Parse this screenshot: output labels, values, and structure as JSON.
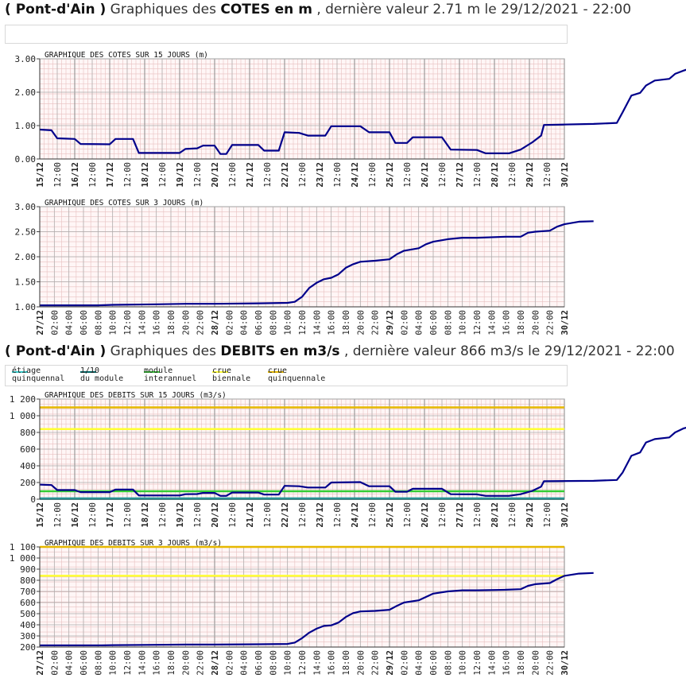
{
  "header_cotes": {
    "place": "( Pont-d'Ain )",
    "pre": "Graphiques des",
    "bold": "COTES en m",
    "post": ", dernière valeur 2.71 m le 29/12/2021 - 22:00"
  },
  "header_debits": {
    "place": "( Pont-d'Ain )",
    "pre": "Graphiques des",
    "bold": "DEBITS en m3/s",
    "post": ", dernière valeur 866 m3/s le 29/12/2021 - 22:00"
  },
  "legend": [
    {
      "label": "étiage\nquinquennal",
      "color": "#33cccc"
    },
    {
      "label": "1/10\ndu module",
      "color": "#006666"
    },
    {
      "label": "module\ninterannuel",
      "color": "#33cc33"
    },
    {
      "label": "crue\nbiennale",
      "color": "#ffff33"
    },
    {
      "label": "crue\nquinquennale",
      "color": "#e6b800"
    }
  ],
  "colors": {
    "series": "#00008b",
    "grid_major": "#999999",
    "grid_minor": "#e8c0c0",
    "plot_bg": "#fff6f6"
  },
  "chart_data": [
    {
      "type": "line",
      "title": "GRAPHIQUE DES COTES SUR 15 JOURS (m)",
      "x_unit": "hours since 15/12 00:00",
      "ylim": [
        0,
        3
      ],
      "yticks": [
        "0.00",
        "1.00",
        "2.00",
        "3.00"
      ],
      "xticks": [
        "15/12",
        "12:00",
        "16/12",
        "12:00",
        "17/12",
        "12:00",
        "18/12",
        "12:00",
        "19/12",
        "12:00",
        "20/12",
        "12:00",
        "21/12",
        "12:00",
        "22/12",
        "12:00",
        "23/12",
        "12:00",
        "24/12",
        "12:00",
        "25/12",
        "12:00",
        "26/12",
        "12:00",
        "27/12",
        "12:00",
        "28/12",
        "12:00",
        "29/12",
        "12:00",
        "30/12"
      ],
      "series": [
        {
          "values": [
            [
              0,
              0.88
            ],
            [
              8,
              0.86
            ],
            [
              12,
              0.62
            ],
            [
              24,
              0.6
            ],
            [
              28,
              0.45
            ],
            [
              48,
              0.44
            ],
            [
              52,
              0.6
            ],
            [
              64,
              0.6
            ],
            [
              68,
              0.18
            ],
            [
              96,
              0.18
            ],
            [
              100,
              0.3
            ],
            [
              108,
              0.32
            ],
            [
              112,
              0.4
            ],
            [
              120,
              0.4
            ],
            [
              124,
              0.15
            ],
            [
              128,
              0.15
            ],
            [
              132,
              0.42
            ],
            [
              150,
              0.42
            ],
            [
              154,
              0.25
            ],
            [
              164,
              0.25
            ],
            [
              168,
              0.8
            ],
            [
              178,
              0.78
            ],
            [
              184,
              0.7
            ],
            [
              196,
              0.7
            ],
            [
              200,
              0.98
            ],
            [
              220,
              0.98
            ],
            [
              226,
              0.8
            ],
            [
              240,
              0.8
            ],
            [
              244,
              0.48
            ],
            [
              252,
              0.48
            ],
            [
              256,
              0.65
            ],
            [
              276,
              0.65
            ],
            [
              282,
              0.28
            ],
            [
              300,
              0.27
            ],
            [
              306,
              0.17
            ],
            [
              322,
              0.17
            ],
            [
              330,
              0.28
            ],
            [
              338,
              0.5
            ],
            [
              344,
              0.7
            ],
            [
              346,
              1.02
            ],
            [
              380,
              1.05
            ],
            [
              396,
              1.08
            ],
            [
              400,
              1.4
            ],
            [
              406,
              1.9
            ],
            [
              412,
              1.98
            ],
            [
              416,
              2.2
            ],
            [
              422,
              2.35
            ],
            [
              432,
              2.4
            ],
            [
              436,
              2.55
            ],
            [
              442,
              2.65
            ],
            [
              446,
              2.71
            ]
          ]
        }
      ]
    },
    {
      "type": "line",
      "title": "GRAPHIQUE DES COTES SUR 3 JOURS (m)",
      "x_unit": "hours since 27/12 00:00",
      "ylim": [
        1,
        3
      ],
      "yticks": [
        "1.00",
        "1.50",
        "2.00",
        "2.50",
        "3.00"
      ],
      "xticks": [
        "27/12",
        "02:00",
        "04:00",
        "06:00",
        "08:00",
        "10:00",
        "12:00",
        "14:00",
        "16:00",
        "18:00",
        "20:00",
        "22:00",
        "28/12",
        "02:00",
        "04:00",
        "06:00",
        "08:00",
        "10:00",
        "12:00",
        "14:00",
        "16:00",
        "18:00",
        "20:00",
        "22:00",
        "29/12",
        "02:00",
        "04:00",
        "06:00",
        "08:00",
        "10:00",
        "12:00",
        "14:00",
        "16:00",
        "18:00",
        "20:00",
        "22:00",
        "30/12"
      ],
      "series": [
        {
          "values": [
            [
              0,
              1.03
            ],
            [
              8,
              1.03
            ],
            [
              10,
              1.04
            ],
            [
              16,
              1.05
            ],
            [
              20,
              1.06
            ],
            [
              24,
              1.06
            ],
            [
              30,
              1.07
            ],
            [
              34,
              1.08
            ],
            [
              35,
              1.1
            ],
            [
              36,
              1.2
            ],
            [
              37,
              1.38
            ],
            [
              38,
              1.48
            ],
            [
              39,
              1.55
            ],
            [
              40,
              1.58
            ],
            [
              41,
              1.65
            ],
            [
              42,
              1.78
            ],
            [
              43,
              1.85
            ],
            [
              44,
              1.9
            ],
            [
              46,
              1.92
            ],
            [
              48,
              1.95
            ],
            [
              49,
              2.05
            ],
            [
              50,
              2.12
            ],
            [
              52,
              2.17
            ],
            [
              53,
              2.25
            ],
            [
              54,
              2.3
            ],
            [
              56,
              2.35
            ],
            [
              58,
              2.38
            ],
            [
              60,
              2.38
            ],
            [
              64,
              2.4
            ],
            [
              66,
              2.4
            ],
            [
              67,
              2.48
            ],
            [
              68,
              2.5
            ],
            [
              70,
              2.52
            ],
            [
              71,
              2.6
            ],
            [
              72,
              2.65
            ],
            [
              74,
              2.7
            ],
            [
              76,
              2.71
            ]
          ]
        }
      ]
    },
    {
      "type": "line",
      "title": "GRAPHIQUE DES DEBITS SUR 15 JOURS (m3/s)",
      "x_unit": "hours since 15/12 00:00",
      "ylim": [
        0,
        1200
      ],
      "yticks": [
        "0",
        "200",
        "400",
        "600",
        "800",
        "1 000",
        "1 200"
      ],
      "xticks": [
        "15/12",
        "12:00",
        "16/12",
        "12:00",
        "17/12",
        "12:00",
        "18/12",
        "12:00",
        "19/12",
        "12:00",
        "20/12",
        "12:00",
        "21/12",
        "12:00",
        "22/12",
        "12:00",
        "23/12",
        "12:00",
        "24/12",
        "12:00",
        "25/12",
        "12:00",
        "26/12",
        "12:00",
        "27/12",
        "12:00",
        "28/12",
        "12:00",
        "29/12",
        "12:00",
        "30/12"
      ],
      "reference_lines": [
        {
          "name": "crue quinquennale",
          "value": 1100,
          "color": "#e6b800"
        },
        {
          "name": "crue biennale",
          "value": 840,
          "color": "#ffff33"
        },
        {
          "name": "module interannuel",
          "value": 95,
          "color": "#33cc33"
        },
        {
          "name": "1/10 du module",
          "value": 10,
          "color": "#006666"
        },
        {
          "name": "étiage quinquennal",
          "value": 4,
          "color": "#33cccc"
        }
      ],
      "series": [
        {
          "values": [
            [
              0,
              175
            ],
            [
              8,
              170
            ],
            [
              12,
              110
            ],
            [
              24,
              110
            ],
            [
              28,
              85
            ],
            [
              48,
              85
            ],
            [
              52,
              115
            ],
            [
              64,
              115
            ],
            [
              68,
              45
            ],
            [
              96,
              45
            ],
            [
              100,
              60
            ],
            [
              108,
              62
            ],
            [
              112,
              75
            ],
            [
              120,
              75
            ],
            [
              124,
              40
            ],
            [
              128,
              40
            ],
            [
              132,
              80
            ],
            [
              150,
              80
            ],
            [
              154,
              55
            ],
            [
              164,
              55
            ],
            [
              168,
              160
            ],
            [
              178,
              155
            ],
            [
              184,
              140
            ],
            [
              196,
              140
            ],
            [
              200,
              200
            ],
            [
              220,
              205
            ],
            [
              226,
              155
            ],
            [
              240,
              155
            ],
            [
              244,
              90
            ],
            [
              252,
              90
            ],
            [
              256,
              125
            ],
            [
              276,
              125
            ],
            [
              282,
              60
            ],
            [
              300,
              58
            ],
            [
              306,
              40
            ],
            [
              322,
              40
            ],
            [
              330,
              60
            ],
            [
              338,
              100
            ],
            [
              344,
              150
            ],
            [
              346,
              215
            ],
            [
              380,
              220
            ],
            [
              396,
              230
            ],
            [
              400,
              320
            ],
            [
              406,
              520
            ],
            [
              412,
              560
            ],
            [
              416,
              680
            ],
            [
              422,
              720
            ],
            [
              432,
              740
            ],
            [
              436,
              800
            ],
            [
              442,
              850
            ],
            [
              446,
              866
            ]
          ]
        }
      ]
    },
    {
      "type": "line",
      "title": "GRAPHIQUE DES DEBITS SUR 3 JOURS (m3/s)",
      "x_unit": "hours since 27/12 00:00",
      "ylim": [
        200,
        1100
      ],
      "yticks": [
        "200",
        "300",
        "400",
        "500",
        "600",
        "700",
        "800",
        "900",
        "1 000",
        "1 100"
      ],
      "xticks": [
        "27/12",
        "02:00",
        "04:00",
        "06:00",
        "08:00",
        "10:00",
        "12:00",
        "14:00",
        "16:00",
        "18:00",
        "20:00",
        "22:00",
        "28/12",
        "02:00",
        "04:00",
        "06:00",
        "08:00",
        "10:00",
        "12:00",
        "14:00",
        "16:00",
        "18:00",
        "20:00",
        "22:00",
        "29/12",
        "02:00",
        "04:00",
        "06:00",
        "08:00",
        "10:00",
        "12:00",
        "14:00",
        "16:00",
        "18:00",
        "20:00",
        "22:00",
        "30/12"
      ],
      "reference_lines": [
        {
          "name": "crue quinquennale",
          "value": 1100,
          "color": "#e6b800"
        },
        {
          "name": "crue biennale",
          "value": 840,
          "color": "#ffff33"
        }
      ],
      "series": [
        {
          "values": [
            [
              0,
              215
            ],
            [
              8,
              215
            ],
            [
              10,
              217
            ],
            [
              16,
              220
            ],
            [
              20,
              222
            ],
            [
              24,
              222
            ],
            [
              30,
              225
            ],
            [
              34,
              228
            ],
            [
              35,
              240
            ],
            [
              36,
              280
            ],
            [
              37,
              330
            ],
            [
              38,
              365
            ],
            [
              39,
              390
            ],
            [
              40,
              395
            ],
            [
              41,
              420
            ],
            [
              42,
              470
            ],
            [
              43,
              505
            ],
            [
              44,
              520
            ],
            [
              46,
              525
            ],
            [
              48,
              535
            ],
            [
              49,
              570
            ],
            [
              50,
              600
            ],
            [
              52,
              620
            ],
            [
              53,
              650
            ],
            [
              54,
              680
            ],
            [
              56,
              700
            ],
            [
              58,
              710
            ],
            [
              60,
              710
            ],
            [
              64,
              715
            ],
            [
              66,
              720
            ],
            [
              67,
              750
            ],
            [
              68,
              765
            ],
            [
              70,
              775
            ],
            [
              71,
              810
            ],
            [
              72,
              840
            ],
            [
              74,
              860
            ],
            [
              76,
              866
            ]
          ]
        }
      ]
    }
  ]
}
